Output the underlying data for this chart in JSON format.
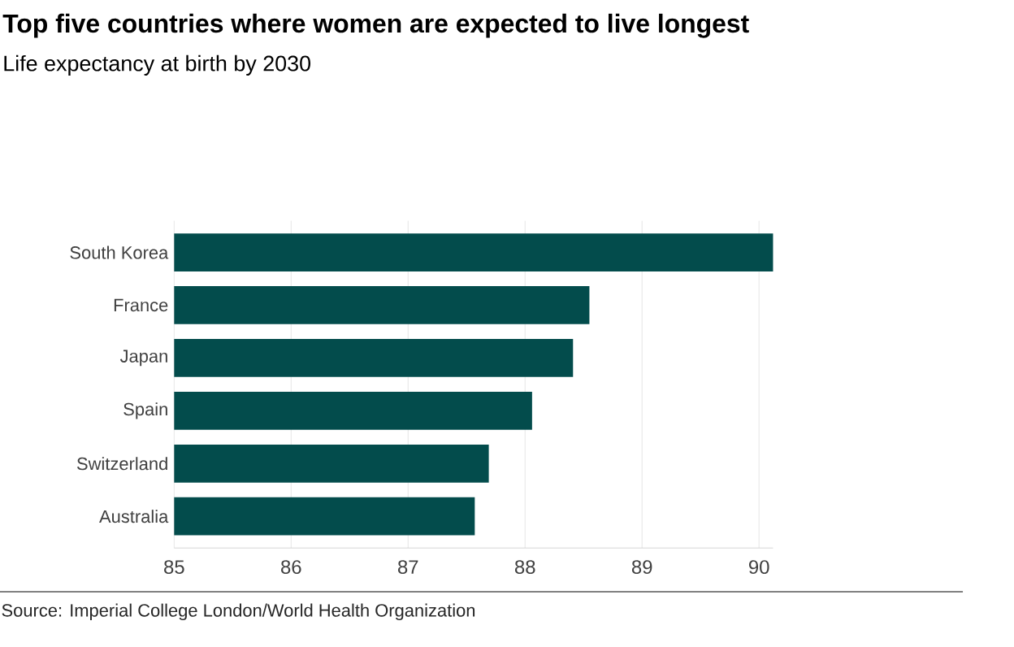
{
  "chart_data": {
    "type": "bar",
    "orientation": "horizontal",
    "title": "Top five countries where women are expected to live longest",
    "subtitle": "Life expectancy at birth by 2030",
    "categories": [
      "South Korea",
      "France",
      "Japan",
      "Spain",
      "Switzerland",
      "Australia"
    ],
    "values": [
      90.12,
      88.55,
      88.41,
      88.06,
      87.69,
      87.57
    ],
    "color": "#034c4c",
    "xlim": [
      85,
      90.12
    ],
    "xticks": [
      85,
      86,
      87,
      88,
      89,
      90
    ],
    "grid": "x",
    "annotations": [
      "Source: Imperial College London/World Health Organization"
    ]
  }
}
